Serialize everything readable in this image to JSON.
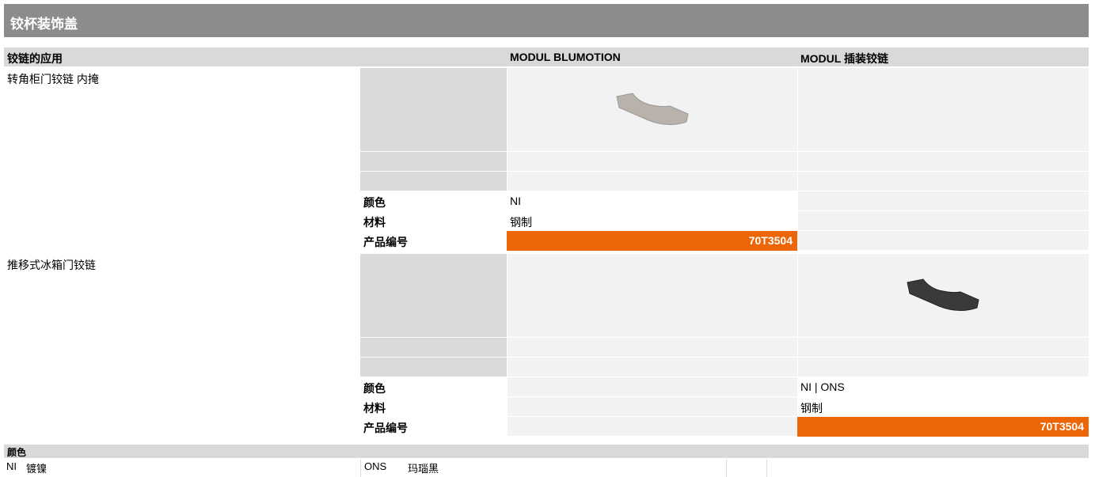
{
  "header": {
    "title": "铰杯装饰盖"
  },
  "table": {
    "columns": [
      "铰链的应用",
      "MODUL BLUMOTION",
      "MODUL 插装铰链"
    ],
    "groups": [
      {
        "application": "转角柜门铰链 内掩",
        "attributes": [
          {
            "label": "颜色",
            "values": [
              "NI",
              null
            ]
          },
          {
            "label": "材料",
            "values": [
              "钢制",
              null
            ]
          },
          {
            "label": "产品编号",
            "values": [
              "70T3504",
              null
            ]
          }
        ]
      },
      {
        "application": "推移式冰箱门铰链",
        "attributes": [
          {
            "label": "颜色",
            "values": [
              null,
              "NI | ONS"
            ]
          },
          {
            "label": "材料",
            "values": [
              null,
              "钢制"
            ]
          },
          {
            "label": "产品编号",
            "values": [
              null,
              "70T3504"
            ]
          }
        ]
      }
    ]
  },
  "legend": {
    "title": "颜色",
    "items": [
      {
        "code": "NI",
        "name": "镀镍"
      },
      {
        "code": "ONS",
        "name": "玛瑙黑"
      }
    ]
  }
}
